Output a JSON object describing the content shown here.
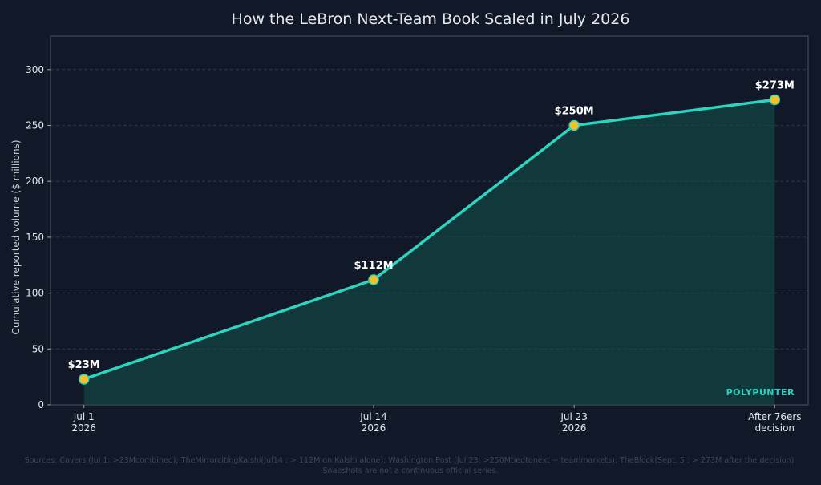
{
  "chart_data": {
    "type": "area",
    "title": "How the LeBron Next-Team Book Scaled in July 2026",
    "xlabel": "",
    "ylabel": "Cumulative reported volume ($ millions)",
    "categories": [
      [
        "Jul 1",
        "2026"
      ],
      [
        "Jul 14",
        "2026"
      ],
      [
        "Jul 23",
        "2026"
      ],
      [
        "After 76ers",
        "decision"
      ]
    ],
    "x": [
      1,
      14,
      23,
      32
    ],
    "xlim": [
      -0.5,
      33.5
    ],
    "values": [
      23,
      112,
      250,
      273
    ],
    "data_labels": [
      "$23M",
      "$112M",
      "$250M",
      "$273M"
    ],
    "ylim": [
      0,
      330
    ],
    "yticks": [
      0,
      50,
      100,
      150,
      200,
      250,
      300
    ],
    "grid": true,
    "colors": {
      "line": "#2dd4bf",
      "fill": "#134e4a",
      "marker": "#fbbf24"
    }
  },
  "watermark": "POLYPUNTER",
  "source_note": [
    "Sources: Covers (Jul 1: >23Mcombined); TheMirrorcitingKalshi(Jul14 : > 112M on Kalshi alone); Washington Post (Jul 23: >250Mtiedtonext − teammarkets); TheBlock(Sept. 5 : > 273M after the decision).",
    "Snapshots are not a continuous official series."
  ]
}
